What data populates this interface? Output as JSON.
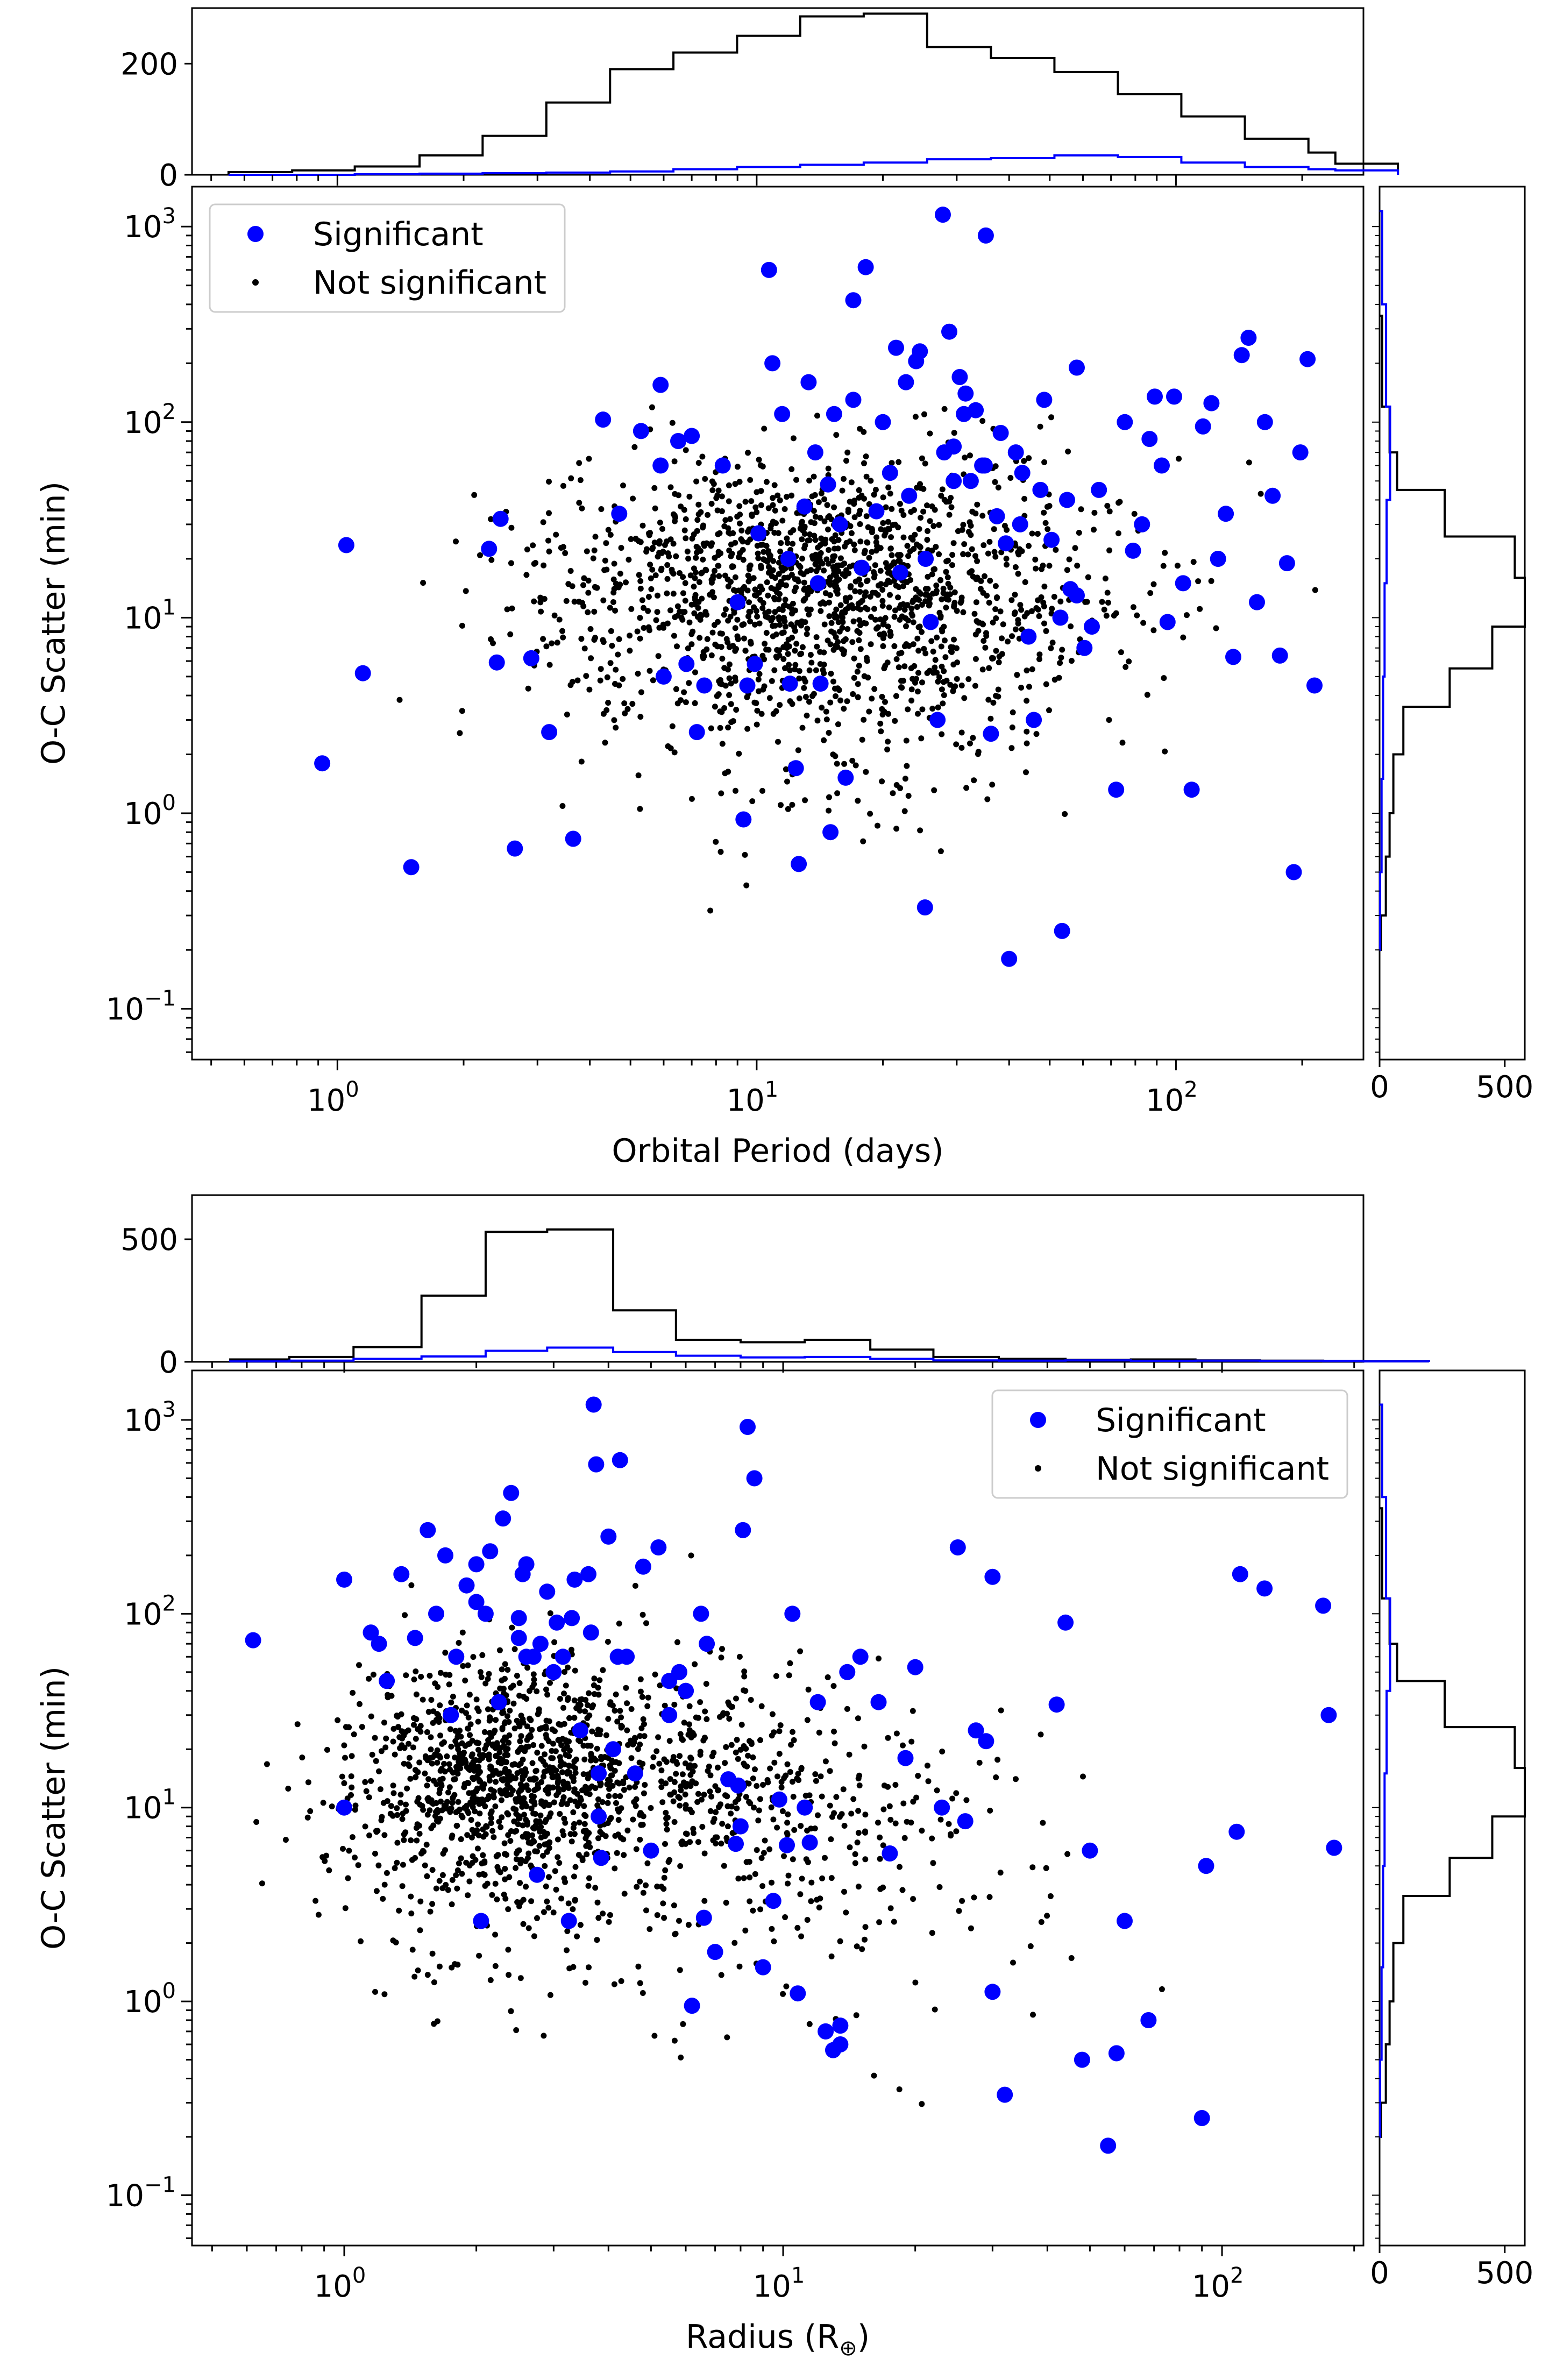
{
  "colors": {
    "significant": "#0000ff",
    "not_significant": "#000000",
    "hist_all": "#000000",
    "hist_significant": "#0000ff"
  },
  "legend": {
    "significant": "Significant",
    "not_significant": "Not significant"
  },
  "chart_data": [
    {
      "id": "top",
      "type": "scatter",
      "xlabel": "Orbital Period (days)",
      "ylabel": "O-C Scatter (min)",
      "xscale": "log",
      "yscale": "log",
      "xlim": [
        0.45,
        280
      ],
      "ylim": [
        0.055,
        1600
      ],
      "legend_position": "top-left",
      "xticks": [
        {
          "base": "10",
          "exp": "0",
          "value": 1
        },
        {
          "base": "10",
          "exp": "1",
          "value": 10
        },
        {
          "base": "10",
          "exp": "2",
          "value": 100
        }
      ],
      "yticks": [
        {
          "base": "10",
          "exp": "−1",
          "value": 0.1
        },
        {
          "base": "10",
          "exp": "0",
          "value": 1
        },
        {
          "base": "10",
          "exp": "1",
          "value": 10
        },
        {
          "base": "10",
          "exp": "2",
          "value": 100
        },
        {
          "base": "10",
          "exp": "3",
          "value": 1000
        }
      ],
      "series": [
        {
          "name": "Significant",
          "x": [
            1.05,
            0.92,
            1.15,
            1.5,
            2.3,
            2.4,
            2.45,
            2.65,
            2.9,
            3.2,
            3.65,
            4.3,
            4.7,
            5.3,
            5.9,
            5.9,
            6.0,
            6.5,
            6.8,
            7.0,
            7.2,
            7.5,
            8.3,
            9.3,
            9.5,
            9.9,
            10.1,
            10.7,
            10.9,
            11.5,
            11.9,
            12.4,
            12.6,
            13.0,
            13.3,
            13.8,
            14.2,
            14.8,
            15.0,
            15.3,
            15.8,
            16.3,
            17.0,
            17.0,
            18.2,
            19.3,
            20.0,
            20.8,
            21.5,
            22.0,
            22.7,
            23.1,
            24.0,
            24.5,
            25.2,
            26.0,
            27.0,
            27.8,
            28.8,
            29.5,
            30.5,
            31.5,
            32.4,
            33.3,
            34.5,
            35.2,
            36.2,
            37.4,
            38.2,
            39.3,
            40.0,
            41.5,
            43.0,
            44.5,
            45.8,
            48.5,
            50.5,
            53.5,
            56.0,
            58.0,
            60.5,
            63.0,
            65.5,
            72.0,
            75.5,
            79.0,
            83.0,
            86.5,
            89.0,
            92.5,
            95.5,
            99.0,
            104.0,
            109.0,
            116.0,
            121.5,
            126.0,
            131.5,
            137.0,
            143.5,
            149.0,
            156.0,
            163.0,
            170.0,
            177.0,
            184.0,
            191.0,
            198.0,
            206.0,
            214.0,
            28.0,
            29.5,
            31.2,
            35.0,
            42.5,
            47.5,
            55.0,
            58.0,
            12.0,
            17.8,
            25.3,
            53.0,
            14.0,
            9.0
          ],
          "y": [
            23.5,
            1.8,
            5.2,
            0.53,
            22.5,
            5.9,
            32.0,
            0.66,
            6.2,
            2.6,
            0.74,
            103.0,
            34.0,
            90.0,
            155.0,
            60.0,
            5.0,
            80.0,
            5.8,
            85.0,
            2.6,
            4.5,
            60.0,
            0.93,
            4.5,
            5.8,
            27.0,
            600.0,
            200.0,
            110.0,
            20.0,
            1.7,
            0.55,
            37.0,
            160.0,
            70.0,
            4.6,
            48.0,
            0.8,
            110.0,
            30.0,
            1.52,
            130.0,
            420.0,
            620.0,
            35.0,
            100.0,
            55.0,
            240.0,
            17.0,
            160.0,
            42.0,
            205.0,
            230.0,
            0.33,
            9.5,
            3.0,
            1150.0,
            290.0,
            75.0,
            170.0,
            140.0,
            50.0,
            115.0,
            60.0,
            900.0,
            2.55,
            33.0,
            88.0,
            24.0,
            0.18,
            70.0,
            55.0,
            8.0,
            3.0,
            130.0,
            25.0,
            0.25,
            14.0,
            190.0,
            7.0,
            9.0,
            45.0,
            1.32,
            100.0,
            22.0,
            30.0,
            82.0,
            135.0,
            60.0,
            9.5,
            135.0,
            15.0,
            1.32,
            95.0,
            125.0,
            20.0,
            34.0,
            6.3,
            220.0,
            270.0,
            12.0,
            100.0,
            42.0,
            6.4,
            19.0,
            0.5,
            70.0,
            210.0,
            4.5,
            70.0,
            50.0,
            110.0,
            60.0,
            30.0,
            45.0,
            40.0,
            13.0,
            4.6,
            18.0,
            20.0,
            10.0,
            15.0,
            12.0
          ],
          "marker": "large-dot"
        },
        {
          "name": "Not significant",
          "generated": "dense cloud of about 1700 small dots centered near period 15 days and scatter 15 min",
          "marker": "small-dot"
        }
      ],
      "top_hist": {
        "bins": [
          0.55,
          0.78,
          1.1,
          1.57,
          2.22,
          3.15,
          4.47,
          6.33,
          8.98,
          12.7,
          18.0,
          25.5,
          36.2,
          51.3,
          72.7,
          103.0,
          146.0,
          207.0,
          240.0
        ],
        "all_counts": [
          5,
          8,
          15,
          35,
          70,
          130,
          190,
          220,
          250,
          285,
          290,
          230,
          210,
          185,
          145,
          105,
          65,
          40,
          20
        ],
        "significant_counts": [
          0,
          0,
          1,
          2,
          3,
          4,
          6,
          10,
          14,
          18,
          22,
          28,
          30,
          35,
          32,
          22,
          14,
          10,
          8
        ],
        "ylim": [
          0,
          300
        ],
        "yticks": [
          "0",
          "200"
        ],
        "ytick_values": [
          0,
          200
        ]
      },
      "right_hist": {
        "counts_all": [
          [
            0.2,
            0.3,
            5
          ],
          [
            0.3,
            0.6,
            25
          ],
          [
            0.6,
            1.0,
            40
          ],
          [
            1.0,
            2.0,
            55
          ],
          [
            2.0,
            3.5,
            95
          ],
          [
            3.5,
            5.5,
            280
          ],
          [
            5.5,
            9.0,
            450
          ],
          [
            9.0,
            16.0,
            580
          ],
          [
            16.0,
            26.0,
            540
          ],
          [
            26.0,
            45.0,
            260
          ],
          [
            45.0,
            70.0,
            70
          ],
          [
            70.0,
            120.0,
            40
          ],
          [
            120.0,
            350.0,
            10
          ]
        ],
        "counts_sig": [
          [
            0.2,
            0.5,
            2
          ],
          [
            0.5,
            1.5,
            8
          ],
          [
            1.5,
            5.0,
            14
          ],
          [
            5.0,
            15.0,
            20
          ],
          [
            15.0,
            40.0,
            28
          ],
          [
            40.0,
            120.0,
            42
          ],
          [
            120.0,
            400.0,
            26
          ],
          [
            400.0,
            1200.0,
            10
          ]
        ],
        "xlim": [
          0,
          580
        ],
        "xticks": [
          "0",
          "500"
        ],
        "xtick_values": [
          0,
          500
        ]
      }
    },
    {
      "id": "bottom",
      "type": "scatter",
      "xlabel": "Radius (R",
      "xlabel_sub": "⊕",
      "xlabel_close": ")",
      "ylabel": "O-C Scatter (min)",
      "xscale": "log",
      "yscale": "log",
      "xlim": [
        0.45,
        210
      ],
      "ylim": [
        0.055,
        1800
      ],
      "legend_position": "top-right",
      "xticks": [
        {
          "base": "10",
          "exp": "0",
          "value": 1
        },
        {
          "base": "10",
          "exp": "1",
          "value": 10
        },
        {
          "base": "10",
          "exp": "2",
          "value": 100
        }
      ],
      "yticks": [
        {
          "base": "10",
          "exp": "−1",
          "value": 0.1
        },
        {
          "base": "10",
          "exp": "0",
          "value": 1
        },
        {
          "base": "10",
          "exp": "1",
          "value": 10
        },
        {
          "base": "10",
          "exp": "2",
          "value": 100
        },
        {
          "base": "10",
          "exp": "3",
          "value": 1000
        }
      ],
      "series": [
        {
          "name": "Significant",
          "x": [
            0.62,
            1.0,
            1.0,
            1.15,
            1.2,
            1.25,
            1.35,
            1.45,
            1.55,
            1.62,
            1.7,
            1.75,
            1.8,
            1.9,
            2.0,
            2.05,
            2.1,
            2.15,
            2.25,
            2.3,
            2.4,
            2.5,
            2.55,
            2.6,
            2.7,
            2.75,
            2.8,
            2.9,
            3.0,
            3.05,
            3.15,
            3.25,
            3.35,
            3.45,
            3.6,
            3.65,
            3.75,
            3.85,
            4.0,
            4.1,
            4.25,
            4.4,
            4.6,
            4.8,
            5.0,
            5.2,
            5.5,
            5.8,
            6.0,
            6.2,
            6.5,
            6.6,
            6.7,
            7.0,
            7.5,
            7.8,
            8.0,
            8.1,
            8.3,
            8.6,
            9.0,
            9.5,
            9.8,
            10.2,
            10.5,
            10.8,
            11.2,
            11.5,
            12.0,
            12.5,
            13.0,
            13.5,
            14.0,
            15.0,
            16.5,
            17.5,
            19.0,
            20.0,
            23.0,
            25.0,
            26.0,
            27.5,
            29.0,
            30.0,
            32.0,
            42.0,
            44.0,
            48.0,
            50.0,
            55.0,
            57.5,
            60.0,
            68.0,
            90.0,
            92.0,
            108.0,
            110.0,
            125.0,
            170.0,
            175.0,
            180.0,
            3.7,
            3.8,
            4.2,
            7.9,
            3.8,
            2.0,
            2.6,
            3.3,
            2.5,
            6.0,
            5.5,
            13.5,
            30.0
          ],
          "y": [
            73.0,
            150.0,
            10.0,
            80.0,
            70.0,
            45.0,
            160.0,
            75.0,
            270.0,
            100.0,
            200.0,
            30.0,
            60.0,
            140.0,
            180.0,
            2.6,
            100.0,
            210.0,
            35.0,
            310.0,
            420.0,
            95.0,
            160.0,
            180.0,
            60.0,
            4.5,
            70.0,
            130.0,
            50.0,
            90.0,
            60.0,
            2.6,
            150.0,
            25.0,
            160.0,
            80.0,
            590.0,
            5.5,
            250.0,
            20.0,
            620.0,
            60.0,
            15.0,
            175.0,
            6.0,
            220.0,
            30.0,
            50.0,
            40.0,
            0.95,
            100.0,
            2.7,
            70.0,
            1.8,
            14.0,
            6.5,
            8.0,
            270.0,
            920.0,
            500.0,
            1.5,
            3.3,
            11.0,
            6.4,
            100.0,
            1.1,
            10.0,
            6.6,
            35.0,
            0.7,
            0.56,
            0.6,
            50.0,
            60.0,
            35.0,
            5.8,
            18.0,
            53.0,
            10.0,
            220.0,
            8.5,
            25.0,
            22.0,
            1.12,
            0.33,
            34.0,
            90.0,
            0.5,
            6.0,
            0.18,
            0.54,
            2.6,
            0.8,
            0.25,
            5.0,
            7.5,
            160.0,
            135.0,
            110.0,
            30.0,
            6.2,
            1200.0,
            15.0,
            60.0,
            13.0,
            9.0,
            115.0,
            60.0,
            95.0,
            75.0,
            40.0,
            45.0,
            0.75,
            155.0
          ],
          "marker": "large-dot"
        },
        {
          "name": "Not significant",
          "generated": "dense cloud of about 1700 small dots centered near radius 2.5 Earth radii and scatter 15 min",
          "marker": "small-dot"
        }
      ],
      "top_hist": {
        "bins": [
          0.55,
          0.75,
          1.05,
          1.5,
          2.1,
          2.9,
          4.1,
          5.7,
          8.0,
          11.2,
          15.8,
          22.0,
          31.0,
          44.0,
          62.0,
          87.0,
          122.0,
          170.0,
          210.0
        ],
        "all_counts": [
          10,
          20,
          60,
          270,
          530,
          540,
          210,
          90,
          80,
          90,
          50,
          20,
          12,
          8,
          10,
          6,
          5,
          3,
          2
        ],
        "significant_counts": [
          2,
          5,
          12,
          22,
          45,
          58,
          40,
          25,
          18,
          20,
          12,
          6,
          5,
          6,
          4,
          5,
          4,
          3,
          2
        ],
        "ylim": [
          0,
          680
        ],
        "yticks": [
          "0",
          "500"
        ],
        "ytick_values": [
          0,
          500
        ]
      },
      "right_hist": {
        "counts_all": [
          [
            0.2,
            0.3,
            5
          ],
          [
            0.3,
            0.6,
            25
          ],
          [
            0.6,
            1.0,
            40
          ],
          [
            1.0,
            2.0,
            55
          ],
          [
            2.0,
            3.5,
            95
          ],
          [
            3.5,
            5.5,
            280
          ],
          [
            5.5,
            9.0,
            450
          ],
          [
            9.0,
            16.0,
            580
          ],
          [
            16.0,
            26.0,
            540
          ],
          [
            26.0,
            45.0,
            260
          ],
          [
            45.0,
            70.0,
            70
          ],
          [
            70.0,
            120.0,
            40
          ],
          [
            120.0,
            350.0,
            10
          ]
        ],
        "counts_sig": [
          [
            0.2,
            0.5,
            2
          ],
          [
            0.5,
            1.5,
            8
          ],
          [
            1.5,
            5.0,
            14
          ],
          [
            5.0,
            15.0,
            20
          ],
          [
            15.0,
            40.0,
            28
          ],
          [
            40.0,
            120.0,
            42
          ],
          [
            120.0,
            400.0,
            26
          ],
          [
            400.0,
            1200.0,
            10
          ]
        ],
        "xlim": [
          0,
          580
        ],
        "xticks": [
          "0",
          "500"
        ],
        "xtick_values": [
          0,
          500
        ]
      }
    }
  ]
}
